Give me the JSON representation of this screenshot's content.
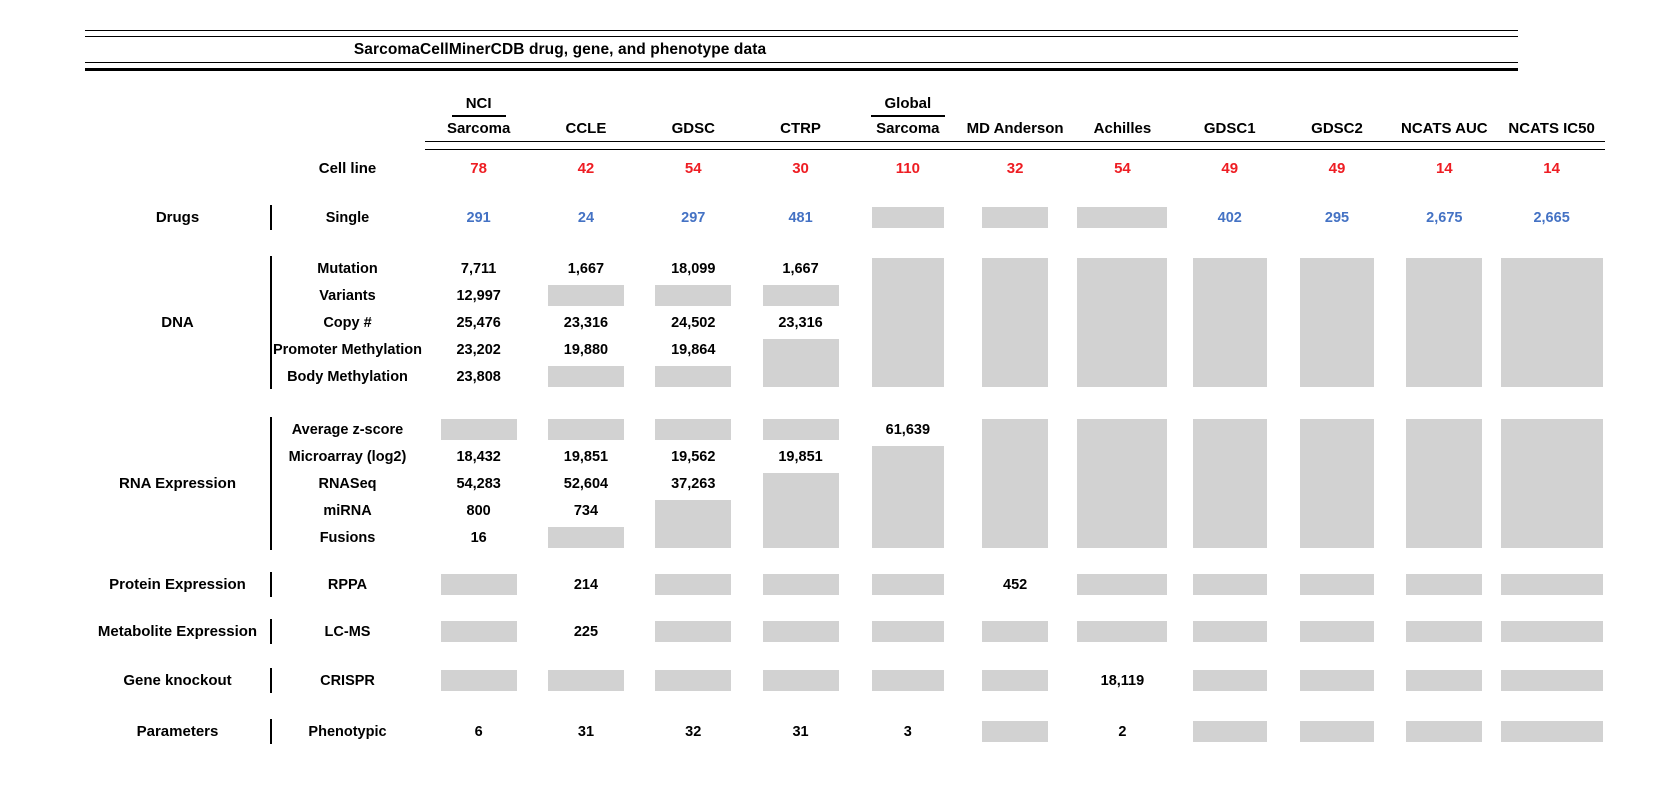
{
  "title": "SarcomaCellMinerCDB drug, gene, and phenotype data",
  "colors": {
    "red": "#ee1d23",
    "blue": "#4472c4",
    "gray_box": "#d2d2d2",
    "text": "#000000"
  },
  "columns": [
    {
      "id": "nci-sarcoma",
      "top": "NCI",
      "label": "Sarcoma"
    },
    {
      "id": "ccle",
      "top": "",
      "label": "CCLE"
    },
    {
      "id": "gdsc",
      "top": "",
      "label": "GDSC"
    },
    {
      "id": "ctrp",
      "top": "",
      "label": "CTRP"
    },
    {
      "id": "global-sarcoma",
      "top": "Global",
      "label": "Sarcoma"
    },
    {
      "id": "md-anderson",
      "top": "",
      "label": "MD Anderson"
    },
    {
      "id": "achilles",
      "top": "",
      "label": "Achilles"
    },
    {
      "id": "gdsc1",
      "top": "",
      "label": "GDSC1"
    },
    {
      "id": "gdsc2",
      "top": "",
      "label": "GDSC2"
    },
    {
      "id": "ncats-auc",
      "top": "",
      "label": "NCATS AUC"
    },
    {
      "id": "ncats-ic50",
      "top": "",
      "label": "NCATS IC50"
    }
  ],
  "cell_line_row": {
    "label": "Cell line",
    "values": [
      "78",
      "42",
      "54",
      "30",
      "110",
      "32",
      "54",
      "49",
      "49",
      "14",
      "14"
    ]
  },
  "sections": [
    {
      "group": "Drugs",
      "value_color": "blue",
      "rows": [
        "Single"
      ],
      "cols": [
        [
          "291"
        ],
        [
          "24"
        ],
        [
          "297"
        ],
        [
          "481"
        ],
        [
          1
        ],
        [
          1
        ],
        [
          1
        ],
        [
          "402"
        ],
        [
          "295"
        ],
        [
          "2,675"
        ],
        [
          "2,665"
        ]
      ]
    },
    {
      "group": "DNA",
      "value_color": "black",
      "rows": [
        "Mutation",
        "Variants",
        "Copy #",
        "Promoter Methylation",
        "Body Methylation"
      ],
      "cols": [
        [
          "7,711",
          "12,997",
          "25,476",
          "23,202",
          "23,808"
        ],
        [
          "1,667",
          1,
          "23,316",
          "19,880",
          1
        ],
        [
          "18,099",
          1,
          "24,502",
          "19,864",
          1
        ],
        [
          "1,667",
          1,
          "23,316",
          2
        ],
        [
          5
        ],
        [
          5
        ],
        [
          5
        ],
        [
          5
        ],
        [
          5
        ],
        [
          5
        ],
        [
          5
        ]
      ]
    },
    {
      "group": "RNA Expression",
      "value_color": "black",
      "rows": [
        "Average z-score",
        "Microarray (log2)",
        "RNASeq",
        "miRNA",
        "Fusions"
      ],
      "cols": [
        [
          1,
          "18,432",
          "54,283",
          "800",
          "16"
        ],
        [
          1,
          "19,851",
          "52,604",
          "734",
          1
        ],
        [
          1,
          "19,562",
          "37,263",
          2
        ],
        [
          1,
          "19,851",
          3
        ],
        [
          "61,639",
          4
        ],
        [
          5
        ],
        [
          5
        ],
        [
          5
        ],
        [
          5
        ],
        [
          5
        ],
        [
          5
        ]
      ]
    },
    {
      "group": "Protein Expression",
      "value_color": "black",
      "rows": [
        "RPPA"
      ],
      "cols": [
        [
          1
        ],
        [
          "214"
        ],
        [
          1
        ],
        [
          1
        ],
        [
          1
        ],
        [
          "452"
        ],
        [
          1
        ],
        [
          1
        ],
        [
          1
        ],
        [
          1
        ],
        [
          1
        ]
      ]
    },
    {
      "group": "Metabolite Expression",
      "value_color": "black",
      "rows": [
        "LC-MS"
      ],
      "cols": [
        [
          1
        ],
        [
          "225"
        ],
        [
          1
        ],
        [
          1
        ],
        [
          1
        ],
        [
          1
        ],
        [
          1
        ],
        [
          1
        ],
        [
          1
        ],
        [
          1
        ],
        [
          1
        ]
      ]
    },
    {
      "group": "Gene knockout",
      "value_color": "black",
      "rows": [
        "CRISPR"
      ],
      "cols": [
        [
          1
        ],
        [
          1
        ],
        [
          1
        ],
        [
          1
        ],
        [
          1
        ],
        [
          1
        ],
        [
          "18,119"
        ],
        [
          1
        ],
        [
          1
        ],
        [
          1
        ],
        [
          1
        ]
      ]
    },
    {
      "group": "Parameters",
      "value_color": "black",
      "rows": [
        "Phenotypic"
      ],
      "cols": [
        [
          "6"
        ],
        [
          "31"
        ],
        [
          "32"
        ],
        [
          "31"
        ],
        [
          "3"
        ],
        [
          1
        ],
        [
          "2"
        ],
        [
          1
        ],
        [
          1
        ],
        [
          1
        ],
        [
          1
        ]
      ]
    }
  ],
  "chart_data": {
    "type": "table",
    "title": "SarcomaCellMinerCDB drug, gene, and phenotype data",
    "columns": [
      "NCI Sarcoma",
      "CCLE",
      "GDSC",
      "CTRP",
      "Global Sarcoma",
      "MD Anderson",
      "Achilles",
      "GDSC1",
      "GDSC2",
      "NCATS AUC",
      "NCATS IC50"
    ],
    "empty_cell_style": "gray box rendered where no value is shown",
    "rows": [
      {
        "group": "",
        "label": "Cell line",
        "values": [
          78,
          42,
          54,
          30,
          110,
          32,
          54,
          49,
          49,
          14,
          14
        ]
      },
      {
        "group": "Drugs",
        "label": "Single",
        "values": [
          291,
          24,
          297,
          481,
          null,
          null,
          null,
          402,
          295,
          2675,
          2665
        ]
      },
      {
        "group": "DNA",
        "label": "Mutation",
        "values": [
          7711,
          1667,
          18099,
          1667,
          null,
          null,
          null,
          null,
          null,
          null,
          null
        ]
      },
      {
        "group": "DNA",
        "label": "Variants",
        "values": [
          12997,
          null,
          null,
          null,
          null,
          null,
          null,
          null,
          null,
          null,
          null
        ]
      },
      {
        "group": "DNA",
        "label": "Copy #",
        "values": [
          25476,
          23316,
          24502,
          23316,
          null,
          null,
          null,
          null,
          null,
          null,
          null
        ]
      },
      {
        "group": "DNA",
        "label": "Promoter Methylation",
        "values": [
          23202,
          19880,
          19864,
          null,
          null,
          null,
          null,
          null,
          null,
          null,
          null
        ]
      },
      {
        "group": "DNA",
        "label": "Body Methylation",
        "values": [
          23808,
          null,
          null,
          null,
          null,
          null,
          null,
          null,
          null,
          null,
          null
        ]
      },
      {
        "group": "RNA Expression",
        "label": "Average z-score",
        "values": [
          null,
          null,
          null,
          null,
          61639,
          null,
          null,
          null,
          null,
          null,
          null
        ]
      },
      {
        "group": "RNA Expression",
        "label": "Microarray (log2)",
        "values": [
          18432,
          19851,
          19562,
          19851,
          null,
          null,
          null,
          null,
          null,
          null,
          null
        ]
      },
      {
        "group": "RNA Expression",
        "label": "RNASeq",
        "values": [
          54283,
          52604,
          37263,
          null,
          null,
          null,
          null,
          null,
          null,
          null,
          null
        ]
      },
      {
        "group": "RNA Expression",
        "label": "miRNA",
        "values": [
          800,
          734,
          null,
          null,
          null,
          null,
          null,
          null,
          null,
          null,
          null
        ]
      },
      {
        "group": "RNA Expression",
        "label": "Fusions",
        "values": [
          16,
          null,
          null,
          null,
          null,
          null,
          null,
          null,
          null,
          null,
          null
        ]
      },
      {
        "group": "Protein Expression",
        "label": "RPPA",
        "values": [
          null,
          214,
          null,
          null,
          null,
          452,
          null,
          null,
          null,
          null,
          null
        ]
      },
      {
        "group": "Metabolite Expression",
        "label": "LC-MS",
        "values": [
          null,
          225,
          null,
          null,
          null,
          null,
          null,
          null,
          null,
          null,
          null
        ]
      },
      {
        "group": "Gene knockout",
        "label": "CRISPR",
        "values": [
          null,
          null,
          null,
          null,
          null,
          null,
          18119,
          null,
          null,
          null,
          null
        ]
      },
      {
        "group": "Parameters",
        "label": "Phenotypic",
        "values": [
          6,
          31,
          32,
          31,
          3,
          null,
          2,
          null,
          null,
          null,
          null
        ]
      }
    ]
  }
}
